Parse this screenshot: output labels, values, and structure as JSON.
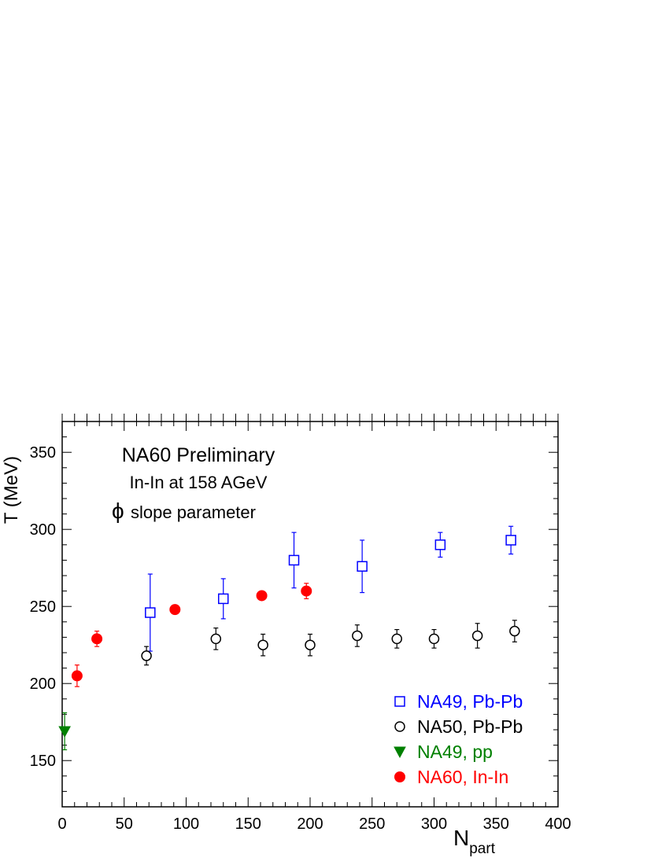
{
  "chart_data": {
    "type": "scatter",
    "xlabel": "N",
    "xlabel_sub": "part",
    "ylabel": "T (MeV)",
    "xlim": [
      0,
      400
    ],
    "ylim": [
      120,
      370
    ],
    "xticks": [
      0,
      50,
      100,
      150,
      200,
      250,
      300,
      350,
      400
    ],
    "yticks": [
      150,
      200,
      250,
      300,
      350
    ],
    "grid": false,
    "legend_position": "bottom-right",
    "annotations": {
      "line1": "NA60 Preliminary",
      "line2": "In-In at 158 AGeV",
      "phi_symbol": "ϕ",
      "line3": "slope parameter"
    },
    "series": [
      {
        "name": "NA49, Pb-Pb",
        "marker": "open-square",
        "color": "#0000ff",
        "points": [
          {
            "x": 71,
            "y": 246,
            "err": 25
          },
          {
            "x": 130,
            "y": 255,
            "err": 13
          },
          {
            "x": 187,
            "y": 280,
            "err": 18
          },
          {
            "x": 242,
            "y": 276,
            "err": 17
          },
          {
            "x": 305,
            "y": 290,
            "err": 8
          },
          {
            "x": 362,
            "y": 293,
            "err": 9
          }
        ]
      },
      {
        "name": "NA50, Pb-Pb",
        "marker": "open-circle",
        "color": "#000000",
        "points": [
          {
            "x": 68,
            "y": 218,
            "err": 6
          },
          {
            "x": 124,
            "y": 229,
            "err": 7
          },
          {
            "x": 162,
            "y": 225,
            "err": 7
          },
          {
            "x": 200,
            "y": 225,
            "err": 7
          },
          {
            "x": 238,
            "y": 231,
            "err": 7
          },
          {
            "x": 270,
            "y": 229,
            "err": 6
          },
          {
            "x": 300,
            "y": 229,
            "err": 6
          },
          {
            "x": 335,
            "y": 231,
            "err": 8
          },
          {
            "x": 365,
            "y": 234,
            "err": 7
          }
        ]
      },
      {
        "name": "NA49, pp",
        "marker": "filled-triangle-down",
        "color": "#008000",
        "points": [
          {
            "x": 2,
            "y": 169,
            "err": 12
          }
        ]
      },
      {
        "name": "NA60, In-In",
        "marker": "filled-circle",
        "color": "#ff0000",
        "points": [
          {
            "x": 12,
            "y": 205,
            "err": 7
          },
          {
            "x": 28,
            "y": 229,
            "err": 5
          },
          {
            "x": 91,
            "y": 248,
            "err": 0
          },
          {
            "x": 161,
            "y": 257,
            "err": 0
          },
          {
            "x": 197,
            "y": 260,
            "err": 5
          }
        ]
      }
    ]
  }
}
